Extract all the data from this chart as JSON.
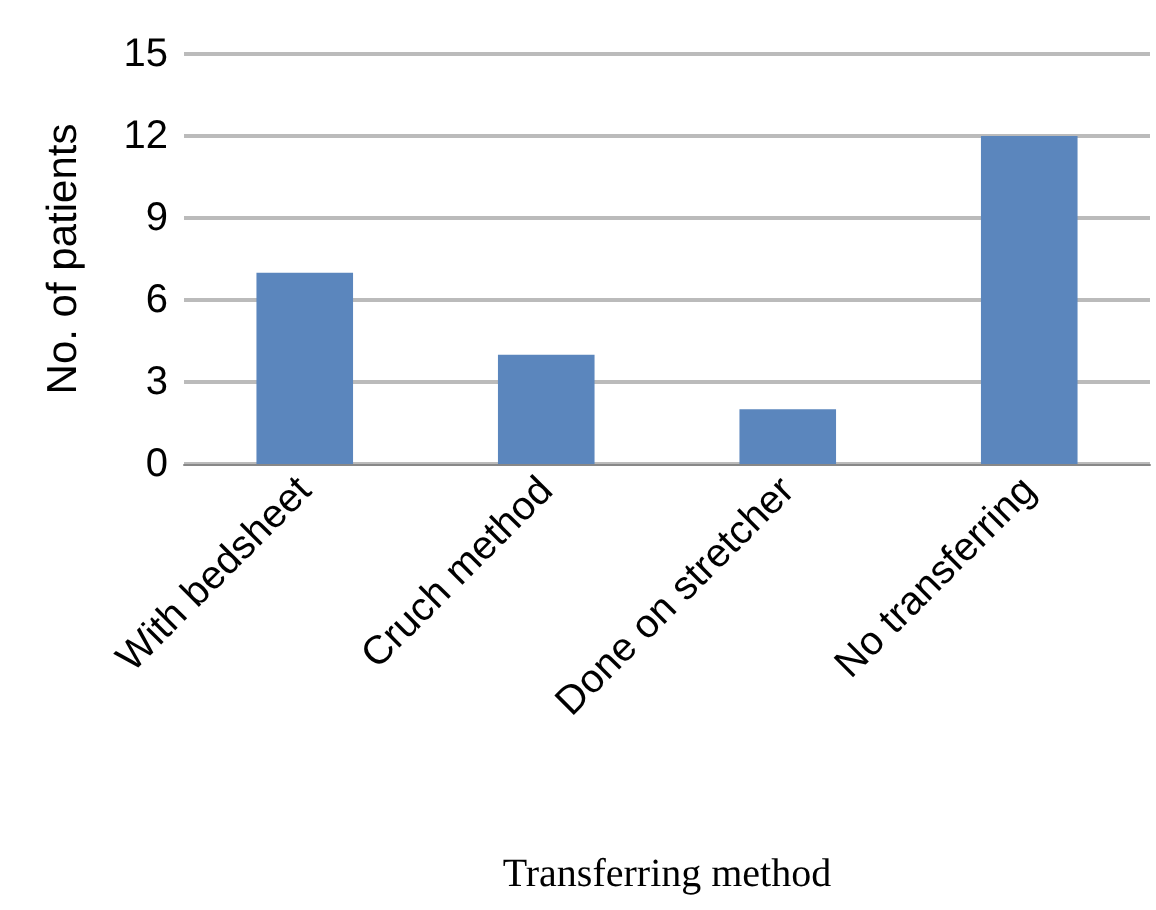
{
  "chart_data": {
    "type": "bar",
    "xlabel": "Transferring method",
    "ylabel": "No. of patients",
    "categories": [
      "With bedsheet",
      "Cruch method",
      "Done on stretcher",
      "No transferring"
    ],
    "values": [
      7,
      4,
      2,
      12
    ],
    "color": "#5b86bd",
    "ylim": [
      0,
      15
    ],
    "yticks": [
      0,
      3,
      6,
      9,
      12,
      15
    ],
    "grid": "y"
  }
}
